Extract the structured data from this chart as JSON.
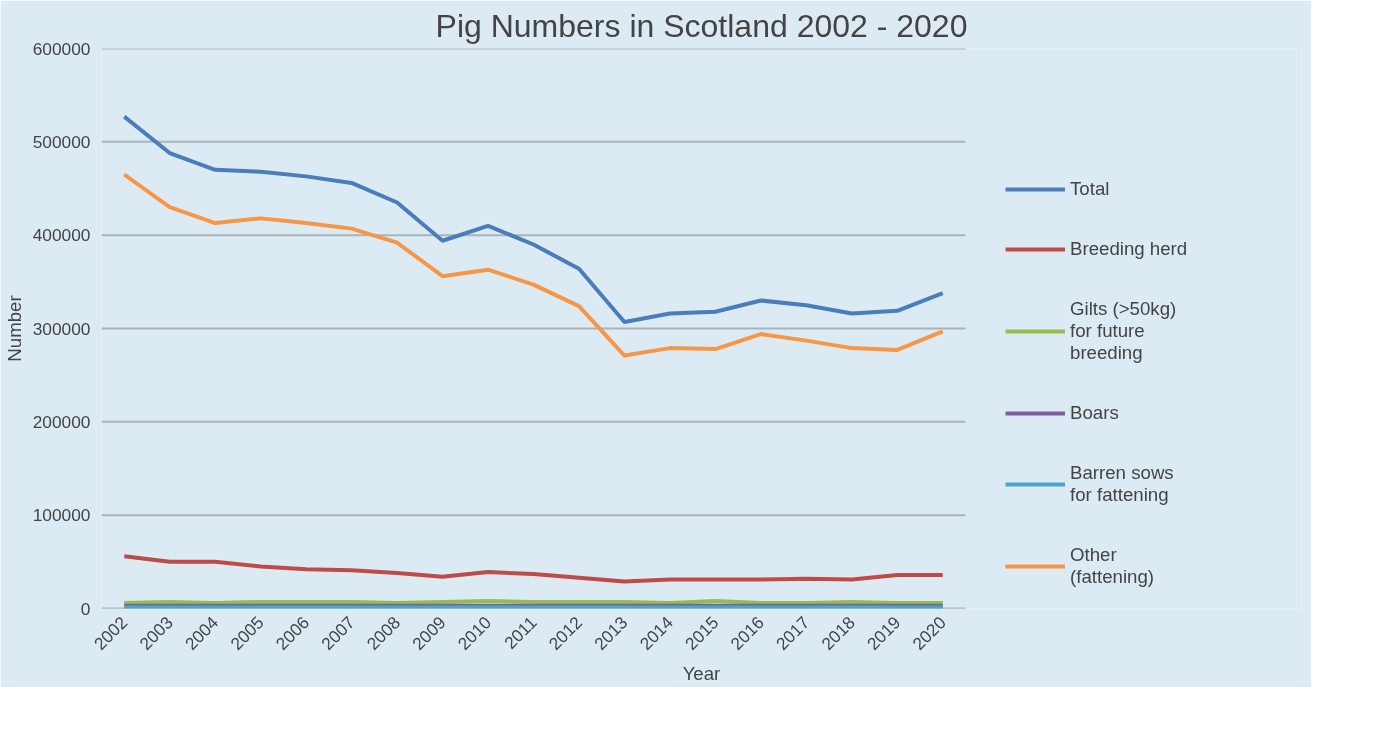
{
  "chart_data": {
    "type": "line",
    "title": "Pig Numbers in Scotland 2002 - 2020",
    "xlabel": "Year",
    "ylabel": "Number",
    "categories": [
      "2002",
      "2003",
      "2004",
      "2005",
      "2006",
      "2007",
      "2008",
      "2009",
      "2010",
      "2011",
      "2012",
      "2013",
      "2014",
      "2015",
      "2016",
      "2017",
      "2018",
      "2019",
      "2020"
    ],
    "series": [
      {
        "name": "Total",
        "color": "#4a7ebb",
        "values": [
          527000,
          488000,
          470000,
          468000,
          463000,
          456000,
          435000,
          394000,
          410000,
          390000,
          364000,
          307000,
          316000,
          318000,
          330000,
          325000,
          316000,
          319000,
          338000
        ]
      },
      {
        "name": "Breeding herd",
        "color": "#be4b48",
        "values": [
          56000,
          50000,
          50000,
          45000,
          42000,
          41000,
          38000,
          34000,
          39000,
          37000,
          33000,
          29000,
          31000,
          31000,
          31000,
          32000,
          31000,
          36000,
          36000
        ]
      },
      {
        "name": "Gilts (>50kg) for future breeding",
        "color": "#98b954",
        "values": [
          6000,
          7000,
          6000,
          7000,
          7000,
          7000,
          6000,
          7000,
          8000,
          7000,
          7000,
          7000,
          6000,
          8000,
          6000,
          6000,
          7000,
          6000,
          6000
        ]
      },
      {
        "name": "Boars",
        "color": "#7d60a0",
        "values": [
          3000,
          3000,
          3000,
          3000,
          3000,
          3000,
          3000,
          3000,
          3000,
          3000,
          3000,
          3000,
          3000,
          3000,
          3000,
          3000,
          3000,
          3000,
          3000
        ]
      },
      {
        "name": "Barren sows for fattening",
        "color": "#46aac5",
        "values": [
          1000,
          1000,
          1000,
          1000,
          1000,
          1000,
          1000,
          1000,
          1000,
          1000,
          1000,
          1000,
          1000,
          1000,
          1000,
          1000,
          1000,
          1000,
          1000
        ]
      },
      {
        "name": "Other (fattening)",
        "color": "#f79646",
        "values": [
          465000,
          430000,
          413000,
          418000,
          413000,
          407000,
          392000,
          356000,
          363000,
          347000,
          324000,
          271000,
          279000,
          278000,
          294000,
          287000,
          279000,
          277000,
          297000
        ]
      }
    ],
    "ylim": [
      0,
      600000
    ],
    "yticks": [
      0,
      100000,
      200000,
      300000,
      400000,
      500000,
      600000
    ],
    "grid": "y",
    "legend": "right",
    "line_style": "solid",
    "marker": "none"
  }
}
